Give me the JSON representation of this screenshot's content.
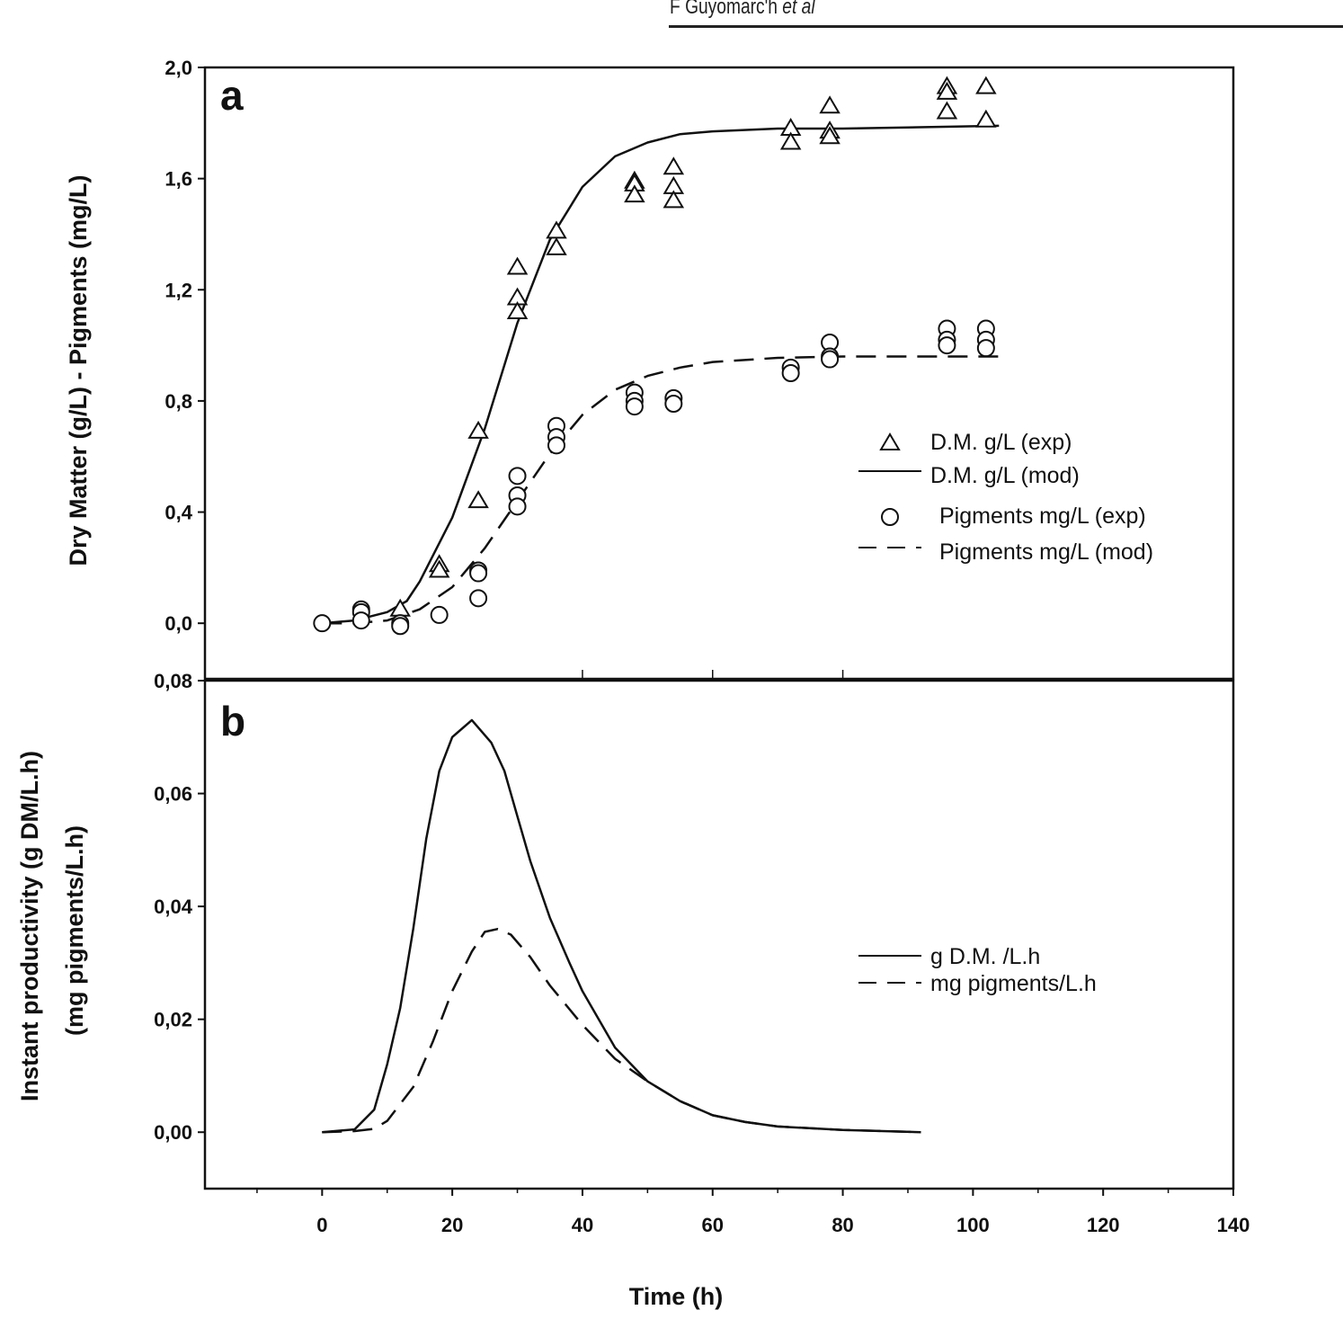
{
  "running_head": {
    "author": "F Guyomarc'h",
    "etal": "et al"
  },
  "chart_data": [
    {
      "panel": "a",
      "type": "scatter",
      "xlabel": "Time (h)",
      "ylabel": "Dry Matter (g/L) - Pigments (mg/L)",
      "xlim": [
        -18,
        140
      ],
      "ylim": [
        -0.2,
        2.0
      ],
      "yticks": [
        "0,0",
        "0,4",
        "0,8",
        "1,2",
        "1,6",
        "2,0"
      ],
      "ytick_values": [
        0,
        0.4,
        0.8,
        1.2,
        1.6,
        2.0
      ],
      "grid": false,
      "legend_placement": "right",
      "series": [
        {
          "name": "D.M. g/L (exp)",
          "kind": "scatter",
          "marker": "triangle",
          "points": [
            [
              12,
              0.05
            ],
            [
              18,
              0.21
            ],
            [
              18,
              0.19
            ],
            [
              24,
              0.69
            ],
            [
              24,
              0.44
            ],
            [
              30,
              1.28
            ],
            [
              30,
              1.17
            ],
            [
              30,
              1.12
            ],
            [
              36,
              1.41
            ],
            [
              36,
              1.35
            ],
            [
              48,
              1.59
            ],
            [
              48,
              1.58
            ],
            [
              48,
              1.54
            ],
            [
              54,
              1.64
            ],
            [
              54,
              1.57
            ],
            [
              54,
              1.52
            ],
            [
              72,
              1.78
            ],
            [
              72,
              1.73
            ],
            [
              78,
              1.86
            ],
            [
              78,
              1.77
            ],
            [
              78,
              1.75
            ],
            [
              96,
              1.93
            ],
            [
              96,
              1.91
            ],
            [
              96,
              1.84
            ],
            [
              102,
              1.93
            ],
            [
              102,
              1.81
            ]
          ]
        },
        {
          "name": "D.M. g/L (mod)",
          "kind": "line",
          "dash": "solid",
          "points": [
            [
              0,
              0.0
            ],
            [
              5,
              0.01
            ],
            [
              10,
              0.04
            ],
            [
              13,
              0.08
            ],
            [
              15,
              0.15
            ],
            [
              20,
              0.38
            ],
            [
              25,
              0.7
            ],
            [
              30,
              1.08
            ],
            [
              35,
              1.38
            ],
            [
              40,
              1.57
            ],
            [
              45,
              1.68
            ],
            [
              50,
              1.73
            ],
            [
              55,
              1.76
            ],
            [
              60,
              1.77
            ],
            [
              70,
              1.78
            ],
            [
              80,
              1.78
            ],
            [
              104,
              1.79
            ]
          ]
        },
        {
          "name": "Pigments mg/L (exp)",
          "kind": "scatter",
          "marker": "circle",
          "points": [
            [
              0,
              0.0
            ],
            [
              6,
              0.05
            ],
            [
              6,
              0.04
            ],
            [
              6,
              0.01
            ],
            [
              12,
              0.0
            ],
            [
              12,
              -0.01
            ],
            [
              18,
              0.03
            ],
            [
              24,
              0.19
            ],
            [
              24,
              0.18
            ],
            [
              24,
              0.09
            ],
            [
              30,
              0.53
            ],
            [
              30,
              0.46
            ],
            [
              30,
              0.42
            ],
            [
              36,
              0.71
            ],
            [
              36,
              0.67
            ],
            [
              36,
              0.64
            ],
            [
              48,
              0.83
            ],
            [
              48,
              0.8
            ],
            [
              48,
              0.78
            ],
            [
              54,
              0.81
            ],
            [
              54,
              0.79
            ],
            [
              72,
              0.92
            ],
            [
              72,
              0.9
            ],
            [
              78,
              1.01
            ],
            [
              78,
              0.96
            ],
            [
              78,
              0.95
            ],
            [
              96,
              1.06
            ],
            [
              96,
              1.02
            ],
            [
              96,
              1.0
            ],
            [
              102,
              1.06
            ],
            [
              102,
              1.02
            ],
            [
              102,
              0.99
            ]
          ]
        },
        {
          "name": "Pigments mg/L (mod)",
          "kind": "line",
          "dash": "dashed",
          "points": [
            [
              0,
              0.0
            ],
            [
              5,
              0.0
            ],
            [
              10,
              0.01
            ],
            [
              15,
              0.05
            ],
            [
              20,
              0.13
            ],
            [
              25,
              0.27
            ],
            [
              30,
              0.44
            ],
            [
              35,
              0.61
            ],
            [
              40,
              0.75
            ],
            [
              45,
              0.84
            ],
            [
              50,
              0.89
            ],
            [
              55,
              0.92
            ],
            [
              60,
              0.94
            ],
            [
              70,
              0.955
            ],
            [
              80,
              0.96
            ],
            [
              104,
              0.96
            ]
          ]
        }
      ]
    },
    {
      "panel": "b",
      "type": "line",
      "xlabel": "Time (h)",
      "ylabel": "Instant productivity (g DM/L.h)",
      "ylabel2": "(mg pigments/L.h)",
      "xlim": [
        -18,
        140
      ],
      "ylim": [
        -0.01,
        0.08
      ],
      "xticks": [
        "0",
        "20",
        "40",
        "60",
        "80",
        "100",
        "120",
        "140"
      ],
      "xtick_values": [
        0,
        20,
        40,
        60,
        80,
        100,
        120,
        140
      ],
      "yticks": [
        "0,00",
        "0,02",
        "0,04",
        "0,06",
        "0,08"
      ],
      "ytick_values": [
        0,
        0.02,
        0.04,
        0.06,
        0.08
      ],
      "grid": false,
      "legend_placement": "right",
      "series": [
        {
          "name": "g D.M. /L.h",
          "dash": "solid",
          "points": [
            [
              0,
              0
            ],
            [
              5,
              0.0005
            ],
            [
              8,
              0.004
            ],
            [
              10,
              0.012
            ],
            [
              12,
              0.022
            ],
            [
              14,
              0.036
            ],
            [
              16,
              0.052
            ],
            [
              18,
              0.064
            ],
            [
              20,
              0.07
            ],
            [
              23,
              0.073
            ],
            [
              26,
              0.069
            ],
            [
              28,
              0.064
            ],
            [
              30,
              0.056
            ],
            [
              32,
              0.048
            ],
            [
              35,
              0.038
            ],
            [
              38,
              0.03
            ],
            [
              40,
              0.025
            ],
            [
              45,
              0.015
            ],
            [
              50,
              0.009
            ],
            [
              55,
              0.0055
            ],
            [
              60,
              0.003
            ],
            [
              65,
              0.0018
            ],
            [
              70,
              0.001
            ],
            [
              80,
              0.0004
            ],
            [
              92,
              0
            ]
          ]
        },
        {
          "name": "mg pigments/L.h",
          "dash": "dashed",
          "points": [
            [
              0,
              0
            ],
            [
              5,
              0.0002
            ],
            [
              8,
              0.0006
            ],
            [
              10,
              0.002
            ],
            [
              14,
              0.008
            ],
            [
              17,
              0.016
            ],
            [
              20,
              0.025
            ],
            [
              23,
              0.032
            ],
            [
              25,
              0.0355
            ],
            [
              27,
              0.036
            ],
            [
              29,
              0.035
            ],
            [
              32,
              0.031
            ],
            [
              35,
              0.026
            ],
            [
              40,
              0.019
            ],
            [
              45,
              0.013
            ],
            [
              50,
              0.009
            ],
            [
              55,
              0.0055
            ],
            [
              60,
              0.003
            ],
            [
              65,
              0.0018
            ],
            [
              70,
              0.001
            ],
            [
              80,
              0.0004
            ],
            [
              92,
              0
            ]
          ]
        }
      ]
    }
  ]
}
